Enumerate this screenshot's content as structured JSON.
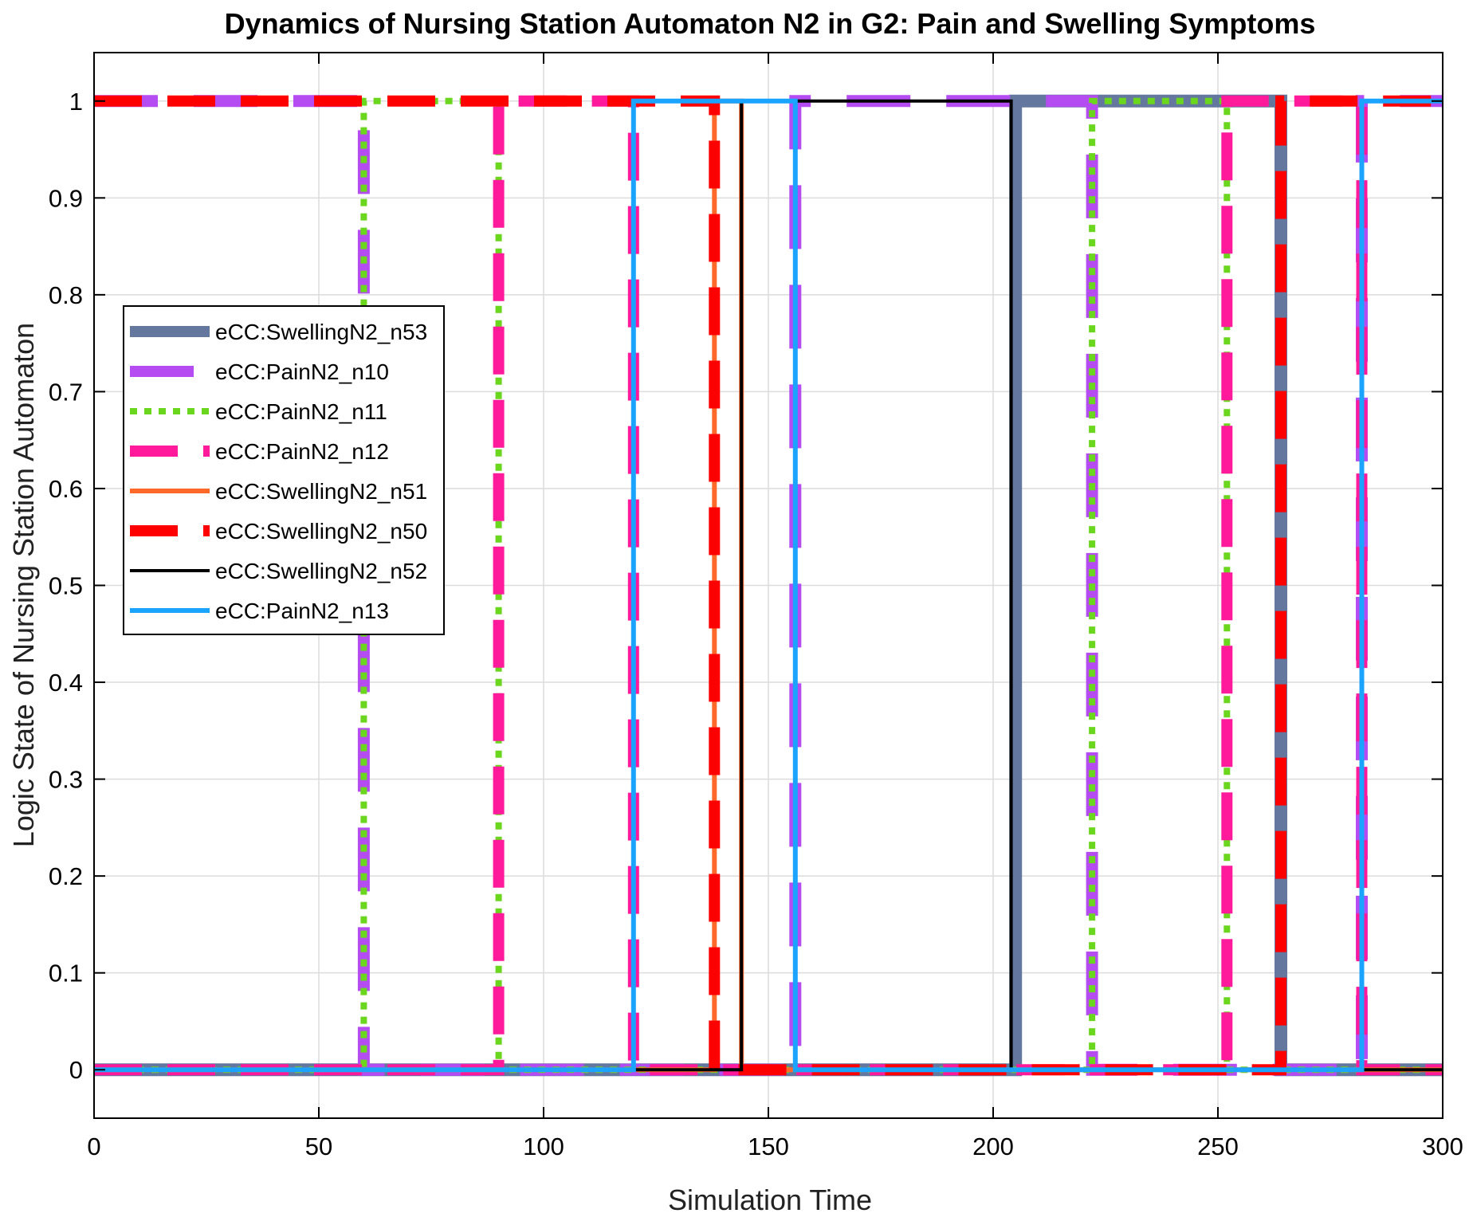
{
  "chart_data": {
    "type": "line",
    "step": true,
    "title": "Dynamics of Nursing Station  Automaton N2 in G2: Pain and Swelling Symptoms",
    "xlabel": "Simulation Time",
    "ylabel": "Logic State of Nursing Station Automaton",
    "xlim": [
      0,
      300
    ],
    "ylim": [
      -0.05,
      1.05
    ],
    "xticks": [
      0,
      50,
      100,
      150,
      200,
      250,
      300
    ],
    "xtick_labels": [
      "0",
      "50",
      "100",
      "150",
      "200",
      "250",
      "300"
    ],
    "yticks": [
      0,
      0.1,
      0.2,
      0.3,
      0.4,
      0.5,
      0.6,
      0.7,
      0.8,
      0.9,
      1
    ],
    "ytick_labels": [
      "0",
      "0.1",
      "0.2",
      "0.3",
      "0.4",
      "0.5",
      "0.6",
      "0.7",
      "0.8",
      "0.9",
      "1"
    ],
    "grid": true,
    "legend_position": "center-left",
    "series": [
      {
        "name": "eCC:SwellingN2_n53",
        "color": "#64779E",
        "style": "solid-thick",
        "points": [
          [
            0,
            0
          ],
          [
            205,
            0
          ],
          [
            205,
            1
          ],
          [
            264,
            1
          ],
          [
            264,
            0
          ],
          [
            300,
            0
          ]
        ]
      },
      {
        "name": "eCC:PainN2_n10",
        "color": "#B44CF2",
        "style": "dash-thick",
        "points": [
          [
            0,
            1
          ],
          [
            60,
            1
          ],
          [
            60,
            0
          ],
          [
            156,
            0
          ],
          [
            156,
            1
          ],
          [
            222,
            1
          ],
          [
            222,
            0
          ],
          [
            282,
            0
          ],
          [
            282,
            1
          ],
          [
            300,
            1
          ]
        ]
      },
      {
        "name": "eCC:PainN2_n11",
        "color": "#6BD61E",
        "style": "dot",
        "points": [
          [
            0,
            0
          ],
          [
            60,
            0
          ],
          [
            60,
            1
          ],
          [
            90,
            1
          ],
          [
            90,
            0
          ],
          [
            222,
            0
          ],
          [
            222,
            1
          ],
          [
            252,
            1
          ],
          [
            252,
            0
          ],
          [
            300,
            0
          ]
        ]
      },
      {
        "name": "eCC:PainN2_n12",
        "color": "#FF1A9C",
        "style": "dash",
        "points": [
          [
            0,
            0
          ],
          [
            90,
            0
          ],
          [
            90,
            1
          ],
          [
            120,
            1
          ],
          [
            120,
            0
          ],
          [
            252,
            0
          ],
          [
            252,
            1
          ],
          [
            282,
            1
          ],
          [
            282,
            0
          ],
          [
            300,
            0
          ]
        ]
      },
      {
        "name": "eCC:SwellingN2_n51",
        "color": "#FF6A2B",
        "style": "solid",
        "points": [
          [
            0,
            0
          ],
          [
            138,
            0
          ],
          [
            138,
            1
          ],
          [
            144,
            1
          ],
          [
            144,
            0
          ],
          [
            300,
            0
          ]
        ]
      },
      {
        "name": "eCC:SwellingN2_n50",
        "color": "#FF0000",
        "style": "dash",
        "points": [
          [
            0,
            1
          ],
          [
            138,
            1
          ],
          [
            138,
            0
          ],
          [
            264,
            0
          ],
          [
            264,
            1
          ],
          [
            300,
            1
          ]
        ]
      },
      {
        "name": "eCC:SwellingN2_n52",
        "color": "#000000",
        "style": "solid-thin",
        "points": [
          [
            0,
            0
          ],
          [
            120,
            0
          ],
          [
            120,
            0
          ],
          [
            144,
            0
          ],
          [
            144,
            1
          ],
          [
            204,
            1
          ],
          [
            204,
            0
          ],
          [
            300,
            0
          ]
        ]
      },
      {
        "name": "eCC:PainN2_n13",
        "color": "#1AA3FF",
        "style": "solid",
        "points": [
          [
            0,
            0
          ],
          [
            120,
            0
          ],
          [
            120,
            1
          ],
          [
            156,
            1
          ],
          [
            156,
            0
          ],
          [
            282,
            0
          ],
          [
            282,
            1
          ],
          [
            300,
            1
          ]
        ]
      }
    ]
  }
}
